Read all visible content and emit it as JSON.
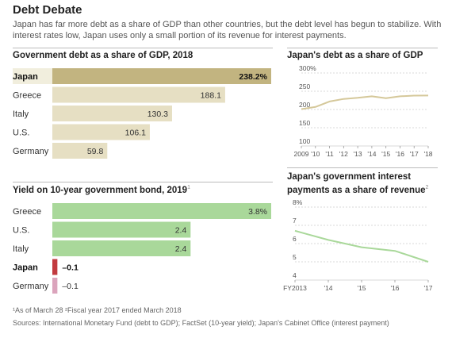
{
  "header": {
    "title": "Debt Debate",
    "subtitle": "Japan has far more debt as a share of GDP than other countries, but the debt level has begun to stabilize. With interest rates low, Japan uses only a small portion of its revenue for interest payments."
  },
  "colors": {
    "tan": "#c2b480",
    "tan_light": "#e6dfc3",
    "green": "#a9d89a",
    "red": "#c23a3f",
    "pink": "#dba4bc",
    "line_tan": "#d5c89a",
    "line_green": "#a9d89a"
  },
  "footnotes": {
    "note": "¹As of March 28  ²Fiscal year 2017 ended March 2018",
    "sources": "Sources: International Monetary Fund (debt to GDP); FactSet (10-year yield); Japan's Cabinet Office (interest payment)"
  },
  "chart_data": [
    {
      "type": "bar",
      "orientation": "horizontal",
      "title": "Government debt as a share of GDP, 2018",
      "categories": [
        "Japan",
        "Greece",
        "Italy",
        "U.S.",
        "Germany"
      ],
      "values": [
        238.2,
        188.1,
        130.3,
        106.1,
        59.8
      ],
      "labels": [
        "238.2%",
        "188.1",
        "130.3",
        "106.1",
        "59.8"
      ],
      "highlight": "Japan"
    },
    {
      "type": "line",
      "title": "Japan's debt as a share of GDP",
      "x": [
        2009,
        2010,
        2011,
        2012,
        2013,
        2014,
        2015,
        2016,
        2017,
        2018
      ],
      "x_tick_labels": [
        "2009",
        "'10",
        "'11",
        "'12",
        "'13",
        "'14",
        "'15",
        "'16",
        "'17",
        "'18"
      ],
      "y": [
        201,
        207,
        222,
        229,
        232,
        236,
        231,
        236,
        238,
        238.2
      ],
      "ylim": [
        100,
        300
      ],
      "y_tick_labels": [
        "300%",
        "250",
        "200",
        "150",
        "100"
      ],
      "grid": true
    },
    {
      "type": "bar",
      "orientation": "horizontal",
      "title": "Yield on 10-year government bond, 2019",
      "title_note": "1",
      "categories": [
        "Greece",
        "U.S.",
        "Italy",
        "Japan",
        "Germany"
      ],
      "values": [
        3.8,
        2.4,
        2.4,
        -0.1,
        -0.1
      ],
      "labels": [
        "3.8%",
        "2.4",
        "2.4",
        "–0.1",
        "–0.1"
      ],
      "highlight": "Japan"
    },
    {
      "type": "line",
      "title": "Japan's government interest payments as a share of revenue",
      "title_note": "2",
      "x": [
        2013,
        2014,
        2015,
        2016,
        2017
      ],
      "x_tick_labels": [
        "FY2013",
        "'14",
        "'15",
        "'16",
        "'17"
      ],
      "y": [
        6.7,
        6.2,
        5.8,
        5.6,
        5.0
      ],
      "ylim": [
        4,
        8
      ],
      "y_tick_labels": [
        "8%",
        "7",
        "6",
        "5",
        "4"
      ],
      "grid": true
    }
  ]
}
